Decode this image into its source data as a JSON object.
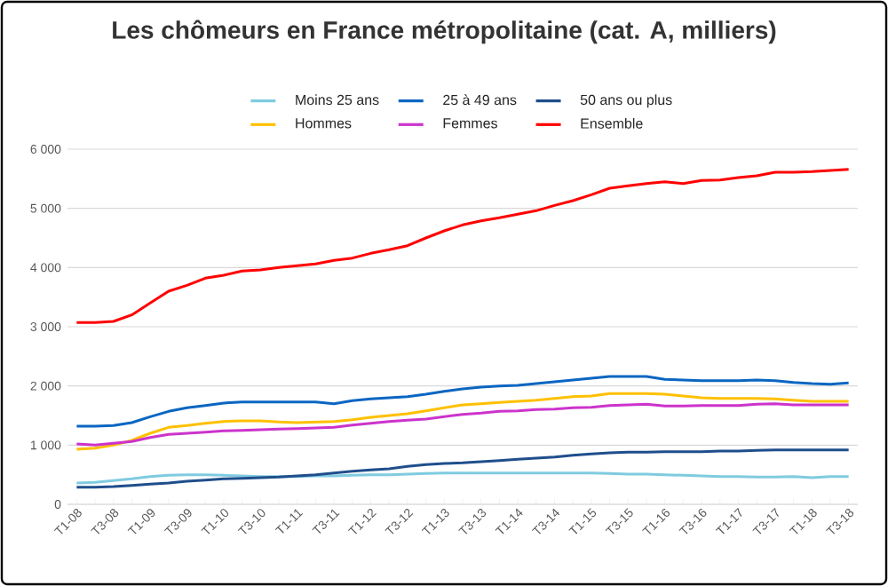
{
  "chart_data": {
    "type": "line",
    "title": "Les chômeurs en France métropolitaine (cat. A, milliers)",
    "categories": [
      "T1-08",
      null,
      "T3-08",
      null,
      "T1-09",
      null,
      "T3-09",
      null,
      "T1-10",
      null,
      "T3-10",
      null,
      "T1-11",
      null,
      "T3-11",
      null,
      "T1-12",
      null,
      "T3-12",
      null,
      "T1-13",
      null,
      "T3-13",
      null,
      "T1-14",
      null,
      "T3-14",
      null,
      "T1-15",
      null,
      "T3-15",
      null,
      "T1-16",
      null,
      "T3-16",
      null,
      "T1-17",
      null,
      "T3-17",
      null,
      "T1-18",
      null,
      "T3-18"
    ],
    "series": [
      {
        "name": "Moins 25 ans",
        "color": "#7fcbe0",
        "values": [
          360,
          370,
          400,
          430,
          470,
          490,
          500,
          500,
          490,
          480,
          470,
          470,
          470,
          480,
          480,
          490,
          500,
          500,
          510,
          520,
          530,
          530,
          530,
          530,
          530,
          530,
          530,
          530,
          530,
          520,
          510,
          510,
          500,
          490,
          480,
          470,
          470,
          460,
          460,
          470,
          450,
          470,
          470
        ]
      },
      {
        "name": "25 à 49 ans",
        "color": "#0a66c2",
        "values": [
          1320,
          1320,
          1330,
          1380,
          1480,
          1570,
          1630,
          1670,
          1710,
          1730,
          1730,
          1730,
          1730,
          1730,
          1700,
          1750,
          1780,
          1800,
          1820,
          1860,
          1910,
          1950,
          1980,
          2000,
          2010,
          2040,
          2070,
          2100,
          2130,
          2160,
          2160,
          2160,
          2110,
          2100,
          2090,
          2090,
          2090,
          2100,
          2090,
          2060,
          2040,
          2030,
          2050
        ]
      },
      {
        "name": "50 ans ou plus",
        "color": "#1f4e8c",
        "values": [
          290,
          290,
          300,
          320,
          340,
          360,
          390,
          410,
          430,
          440,
          450,
          460,
          480,
          500,
          530,
          560,
          580,
          600,
          640,
          670,
          690,
          700,
          720,
          740,
          760,
          780,
          800,
          830,
          850,
          870,
          880,
          880,
          890,
          890,
          890,
          900,
          900,
          910,
          920,
          920,
          920,
          920,
          920
        ]
      },
      {
        "name": "Hommes",
        "color": "#ffc000",
        "values": [
          930,
          950,
          1000,
          1080,
          1200,
          1300,
          1330,
          1370,
          1400,
          1410,
          1410,
          1390,
          1380,
          1390,
          1400,
          1430,
          1470,
          1500,
          1530,
          1580,
          1630,
          1680,
          1700,
          1720,
          1740,
          1760,
          1790,
          1820,
          1830,
          1870,
          1870,
          1870,
          1860,
          1830,
          1800,
          1790,
          1790,
          1790,
          1780,
          1760,
          1740,
          1740,
          1740
        ]
      },
      {
        "name": "Femmes",
        "color": "#cc33cc",
        "values": [
          1020,
          1000,
          1030,
          1060,
          1130,
          1180,
          1200,
          1220,
          1240,
          1250,
          1260,
          1270,
          1280,
          1290,
          1300,
          1340,
          1370,
          1400,
          1420,
          1440,
          1480,
          1520,
          1540,
          1570,
          1580,
          1600,
          1610,
          1630,
          1640,
          1670,
          1680,
          1690,
          1660,
          1660,
          1670,
          1670,
          1670,
          1690,
          1700,
          1680,
          1680,
          1680,
          1680
        ]
      },
      {
        "name": "Ensemble",
        "color": "#ff0000",
        "values": [
          3070,
          3070,
          3090,
          3200,
          3400,
          3600,
          3700,
          3820,
          3870,
          3940,
          3960,
          4000,
          4030,
          4060,
          4120,
          4160,
          4240,
          4300,
          4370,
          4500,
          4620,
          4720,
          4790,
          4840,
          4900,
          4960,
          5050,
          5130,
          5230,
          5340,
          5380,
          5420,
          5450,
          5420,
          5470,
          5480,
          5520,
          5550,
          5610,
          5610,
          5620,
          5640,
          5660
        ]
      }
    ],
    "ylim": [
      0,
      6000
    ],
    "yticks": [
      0,
      {
        "value": 1000,
        "label": "1 000"
      },
      {
        "value": 2000,
        "label": "2 000"
      },
      {
        "value": 3000,
        "label": "3 000"
      },
      {
        "value": 4000,
        "label": "4 000"
      },
      {
        "value": 5000,
        "label": "5 000"
      },
      {
        "value": 6000,
        "label": "6 000"
      }
    ],
    "grid": "y",
    "legend": "top",
    "marker": "none",
    "line_style": "solid"
  }
}
